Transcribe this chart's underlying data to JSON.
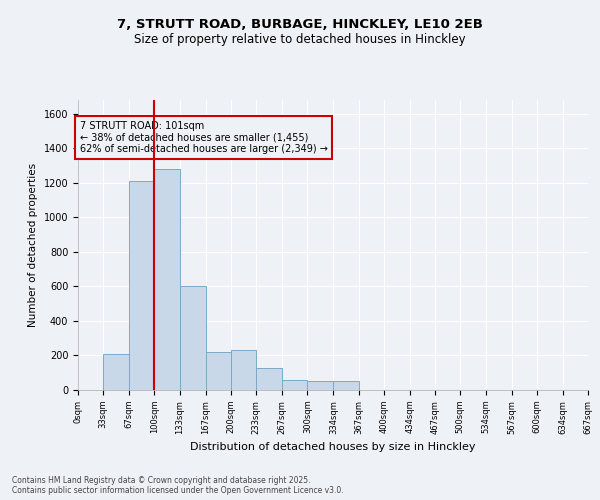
{
  "title_line1": "7, STRUTT ROAD, BURBAGE, HINCKLEY, LE10 2EB",
  "title_line2": "Size of property relative to detached houses in Hinckley",
  "xlabel": "Distribution of detached houses by size in Hinckley",
  "ylabel": "Number of detached properties",
  "bar_color": "#c8d8e8",
  "bar_edgecolor": "#7aaac8",
  "vline_x": 100,
  "vline_color": "#cc0000",
  "annotation_title": "7 STRUTT ROAD: 101sqm",
  "annotation_line2": "← 38% of detached houses are smaller (1,455)",
  "annotation_line3": "62% of semi-detached houses are larger (2,349) →",
  "annotation_box_color": "#cc0000",
  "bins": [
    0,
    33,
    67,
    100,
    133,
    167,
    200,
    233,
    267,
    300,
    334,
    367,
    400,
    434,
    467,
    500,
    534,
    567,
    600,
    634,
    667
  ],
  "bar_heights": [
    0,
    210,
    1210,
    1280,
    600,
    220,
    230,
    130,
    60,
    55,
    50,
    0,
    0,
    0,
    0,
    0,
    0,
    0,
    0,
    0
  ],
  "ylim": [
    0,
    1680
  ],
  "yticks": [
    0,
    200,
    400,
    600,
    800,
    1000,
    1200,
    1400,
    1600
  ],
  "footer_line1": "Contains HM Land Registry data © Crown copyright and database right 2025.",
  "footer_line2": "Contains public sector information licensed under the Open Government Licence v3.0.",
  "background_color": "#eef2f6"
}
